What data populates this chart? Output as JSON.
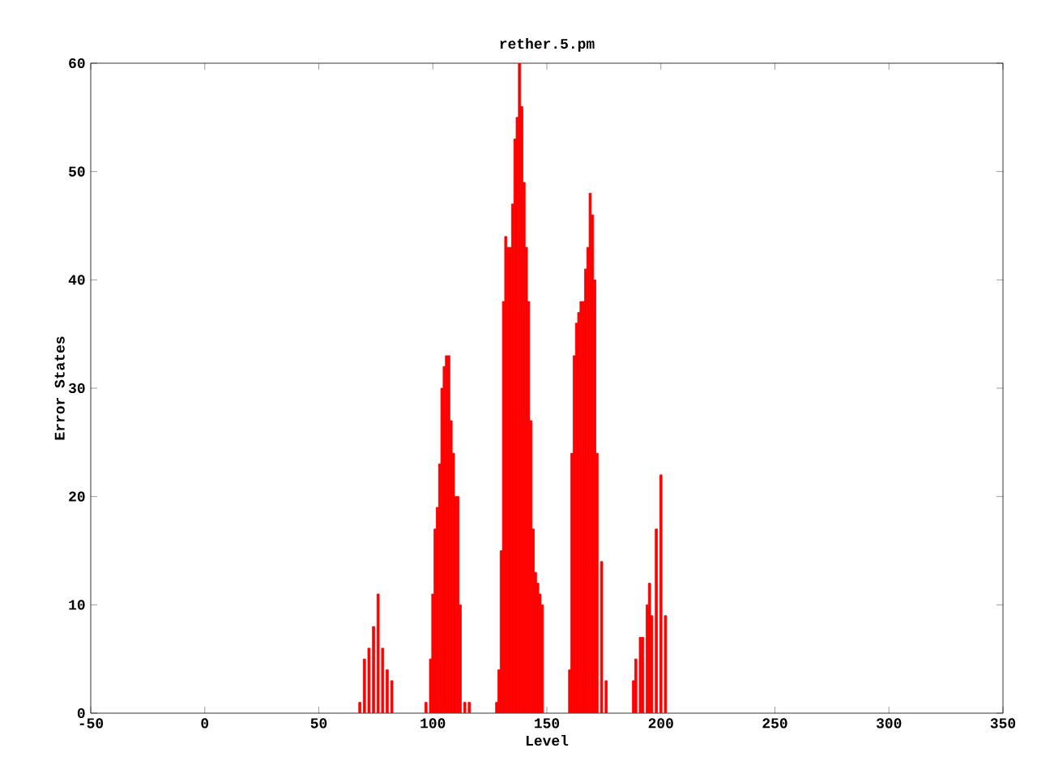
{
  "chart_data": {
    "type": "bar",
    "title": "rether.5.pm",
    "xlabel": "Level",
    "ylabel": "Error States",
    "x": [
      68,
      70,
      72,
      74,
      76,
      78,
      80,
      82,
      97,
      99,
      100,
      101,
      102,
      103,
      104,
      105,
      106,
      107,
      108,
      109,
      110,
      111,
      112,
      114,
      116,
      128,
      129,
      130,
      131,
      132,
      133,
      134,
      135,
      136,
      137,
      138,
      139,
      140,
      141,
      142,
      143,
      144,
      145,
      146,
      147,
      148,
      160,
      161,
      162,
      163,
      164,
      165,
      166,
      167,
      168,
      169,
      170,
      171,
      172,
      174,
      176,
      188,
      189,
      191,
      192,
      194,
      195,
      196,
      198,
      200,
      202
    ],
    "values": [
      1,
      5,
      6,
      8,
      11,
      6,
      4,
      3,
      1,
      5,
      11,
      17,
      19,
      23,
      30,
      32,
      33,
      33,
      27,
      24,
      20,
      20,
      10,
      1,
      1,
      1,
      4,
      15,
      38,
      44,
      43,
      43,
      47,
      53,
      55,
      60,
      56,
      49,
      43,
      38,
      27,
      17,
      13,
      12,
      11,
      10,
      4,
      24,
      33,
      36,
      37,
      38,
      38,
      41,
      43,
      48,
      46,
      40,
      24,
      14,
      3,
      3,
      5,
      7,
      7,
      10,
      12,
      9,
      17,
      22,
      9
    ],
    "color": "#ff0000",
    "xlim": [
      -50,
      350
    ],
    "ylim": [
      0,
      60
    ],
    "xticks": [
      -50,
      0,
      50,
      100,
      150,
      200,
      250,
      300,
      350
    ],
    "yticks": [
      0,
      10,
      20,
      30,
      40,
      50,
      60
    ]
  }
}
